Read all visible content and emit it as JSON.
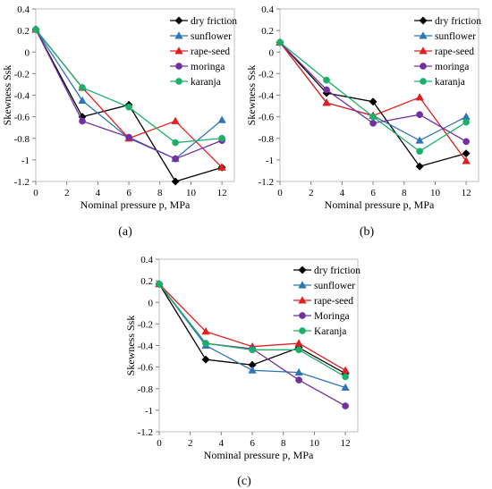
{
  "chart_data": [
    {
      "type": "line",
      "panel_label": "(a)",
      "xlabel": "Nominal pressure p, MPa",
      "ylabel": "Skewness Ssk",
      "xlim": [
        0,
        12.8
      ],
      "ylim": [
        -1.2,
        0.4
      ],
      "xticks": [
        0,
        2,
        4,
        6,
        8,
        10,
        12
      ],
      "yticks": [
        0.4,
        0.2,
        0,
        -0.2,
        -0.4,
        -0.6,
        -0.8,
        -1,
        -1.2
      ],
      "x": [
        0,
        3,
        6,
        9,
        12
      ],
      "grid": false,
      "legend_position": "top-right",
      "series": [
        {
          "name": "dry friction",
          "color": "#000000",
          "marker": "diamond",
          "values": [
            0.21,
            -0.6,
            -0.49,
            -1.2,
            -1.07
          ]
        },
        {
          "name": "sunflower",
          "color": "#2e75b6",
          "marker": "triangle",
          "values": [
            0.21,
            -0.45,
            -0.8,
            -0.99,
            -0.63
          ]
        },
        {
          "name": "rape-seed",
          "color": "#e02020",
          "marker": "triangle",
          "values": [
            0.21,
            -0.33,
            -0.8,
            -0.64,
            -1.07
          ]
        },
        {
          "name": "moringa",
          "color": "#7030a0",
          "marker": "circle",
          "values": [
            0.21,
            -0.64,
            -0.79,
            -0.99,
            -0.82
          ]
        },
        {
          "name": "karanja",
          "color": "#1ab06a",
          "marker": "circle",
          "values": [
            0.21,
            -0.33,
            -0.51,
            -0.84,
            -0.8
          ]
        }
      ]
    },
    {
      "type": "line",
      "panel_label": "(b)",
      "xlabel": "Nominal pressure p, MPa",
      "ylabel": "Skewness Ssk",
      "xlim": [
        0,
        12.8
      ],
      "ylim": [
        -1.2,
        0.4
      ],
      "xticks": [
        0,
        2,
        4,
        6,
        8,
        10,
        12
      ],
      "yticks": [
        0.4,
        0.2,
        0,
        -0.2,
        -0.4,
        -0.6,
        -0.8,
        -1,
        -1.2
      ],
      "x": [
        0,
        3,
        6,
        9,
        12
      ],
      "grid": false,
      "legend_position": "top-right",
      "series": [
        {
          "name": "dry friction",
          "color": "#000000",
          "marker": "diamond",
          "values": [
            0.09,
            -0.38,
            -0.46,
            -1.06,
            -0.94
          ]
        },
        {
          "name": "sunflower",
          "color": "#2e75b6",
          "marker": "triangle",
          "values": [
            0.09,
            -0.47,
            -0.59,
            -0.82,
            -0.6
          ]
        },
        {
          "name": "rape-seed",
          "color": "#e02020",
          "marker": "triangle",
          "values": [
            0.09,
            -0.47,
            -0.59,
            -0.42,
            -1.01
          ]
        },
        {
          "name": "moringa",
          "color": "#7030a0",
          "marker": "circle",
          "values": [
            0.09,
            -0.35,
            -0.66,
            -0.58,
            -0.83
          ]
        },
        {
          "name": "karanja",
          "color": "#1ab06a",
          "marker": "circle",
          "values": [
            0.09,
            -0.26,
            -0.6,
            -0.92,
            -0.65
          ]
        }
      ]
    },
    {
      "type": "line",
      "panel_label": "(c)",
      "xlabel": "Nominal pressure p, MPa",
      "ylabel": "Skewness Ssk",
      "xlim": [
        0,
        12.8
      ],
      "ylim": [
        -1.2,
        0.4
      ],
      "xticks": [
        0,
        2,
        4,
        6,
        8,
        10,
        12
      ],
      "yticks": [
        0.4,
        0.2,
        0,
        -0.2,
        -0.4,
        -0.6,
        -0.8,
        -1,
        -1.2
      ],
      "x": [
        0,
        3,
        6,
        9,
        12
      ],
      "grid": false,
      "legend_position": "top-right",
      "series": [
        {
          "name": "dry friction",
          "color": "#000000",
          "marker": "diamond",
          "values": [
            0.17,
            -0.53,
            -0.58,
            -0.42,
            -0.66
          ]
        },
        {
          "name": "sunflower",
          "color": "#2e75b6",
          "marker": "triangle",
          "values": [
            0.17,
            -0.4,
            -0.63,
            -0.65,
            -0.79
          ]
        },
        {
          "name": "rape-seed",
          "color": "#e02020",
          "marker": "triangle",
          "values": [
            0.17,
            -0.27,
            -0.41,
            -0.38,
            -0.63
          ]
        },
        {
          "name": "Moringa",
          "color": "#7030a0",
          "marker": "circle",
          "values": [
            0.17,
            -0.38,
            -0.43,
            -0.72,
            -0.96
          ]
        },
        {
          "name": "Karanja",
          "color": "#1ab06a",
          "marker": "circle",
          "values": [
            0.17,
            -0.38,
            -0.44,
            -0.44,
            -0.69
          ]
        }
      ]
    }
  ]
}
